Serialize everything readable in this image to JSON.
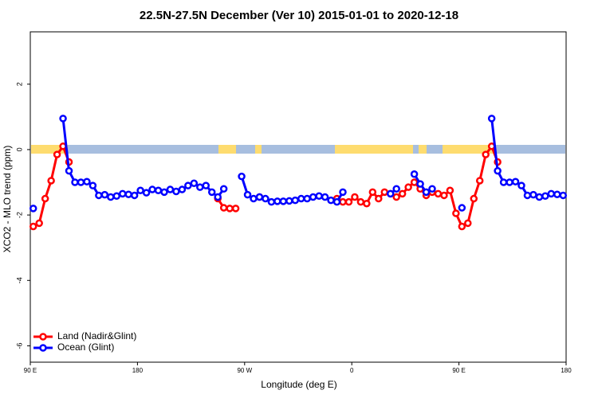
{
  "chart_data": {
    "type": "line",
    "title": "22.5N-27.5N December (Ver 10)   2015-01-01 to 2020-12-18",
    "xlabel": "Longitude (deg E)",
    "ylabel": "XCO2 - MLO trend (ppm)",
    "x": [
      92.5,
      97.5,
      102.5,
      107.5,
      112.5,
      117.5,
      122.5,
      127.5,
      132.5,
      137.5,
      142.5,
      147.5,
      152.5,
      157.5,
      162.5,
      167.5,
      172.5,
      177.5,
      182.5,
      187.5,
      192.5,
      197.5,
      202.5,
      207.5,
      212.5,
      217.5,
      222.5,
      227.5,
      232.5,
      237.5,
      242.5,
      247.5,
      252.5,
      257.5,
      262.5,
      267.5,
      272.5,
      277.5,
      282.5,
      287.5,
      292.5,
      297.5,
      302.5,
      307.5,
      312.5,
      317.5,
      322.5,
      327.5,
      332.5,
      337.5,
      342.5,
      347.5,
      352.5,
      357.5,
      362.5,
      367.5,
      372.5,
      377.5,
      382.5,
      387.5,
      392.5,
      397.5,
      402.5,
      407.5,
      412.5,
      417.5,
      422.5,
      427.5,
      432.5,
      437.5,
      442.5,
      447.5,
      452.5,
      457.5,
      462.5,
      467.5,
      472.5,
      477.5,
      482.5,
      487.5,
      492.5,
      497.5,
      502.5,
      507.5,
      512.5,
      517.5,
      522.5,
      527.5,
      532.5,
      537.5
    ],
    "series": [
      {
        "name": "Land (Nadir&Glint)",
        "color": "#ff0000",
        "values": [
          -2.35,
          -2.25,
          -1.5,
          -0.95,
          -0.15,
          0.1,
          -0.38,
          null,
          null,
          null,
          null,
          null,
          null,
          null,
          null,
          null,
          null,
          null,
          null,
          null,
          null,
          null,
          null,
          null,
          null,
          null,
          null,
          null,
          null,
          null,
          null,
          -1.5,
          -1.78,
          -1.8,
          -1.8,
          null,
          null,
          null,
          -1.45,
          null,
          null,
          null,
          null,
          null,
          null,
          null,
          null,
          null,
          null,
          null,
          null,
          -1.5,
          -1.6,
          -1.6,
          -1.45,
          -1.6,
          -1.65,
          -1.3,
          -1.5,
          -1.3,
          -1.35,
          -1.45,
          -1.35,
          -1.15,
          -1.0,
          -1.2,
          -1.4,
          -1.3,
          -1.35,
          -1.4,
          -1.25,
          -1.95,
          -2.35,
          -2.25,
          -1.5,
          -0.95,
          -0.15,
          0.1,
          -0.38,
          null,
          null,
          null,
          null,
          null,
          null,
          null,
          null,
          null,
          null,
          null
        ]
      },
      {
        "name": "Ocean (Glint)",
        "color": "#0000ff",
        "values": [
          -1.8,
          null,
          null,
          null,
          null,
          0.95,
          -0.65,
          -1.0,
          -1.0,
          -0.98,
          -1.1,
          -1.4,
          -1.38,
          -1.45,
          -1.42,
          -1.35,
          -1.37,
          -1.4,
          -1.25,
          -1.32,
          -1.22,
          -1.25,
          -1.3,
          -1.22,
          -1.28,
          -1.22,
          -1.1,
          -1.03,
          -1.15,
          -1.1,
          -1.3,
          -1.45,
          -1.2,
          null,
          null,
          -0.82,
          -1.38,
          -1.5,
          -1.45,
          -1.5,
          -1.6,
          -1.58,
          -1.58,
          -1.57,
          -1.55,
          -1.5,
          -1.5,
          -1.45,
          -1.42,
          -1.45,
          -1.55,
          -1.6,
          -1.3,
          null,
          null,
          null,
          null,
          null,
          null,
          null,
          -1.35,
          -1.2,
          null,
          null,
          -0.75,
          -1.05,
          -1.3,
          -1.2,
          null,
          null,
          null,
          null,
          -1.78,
          null,
          null,
          null,
          null,
          0.95,
          -0.65,
          -1.0,
          -1.0,
          -0.98,
          -1.1,
          -1.4,
          -1.38,
          -1.45,
          -1.42,
          -1.35,
          -1.37,
          -1.4
        ]
      }
    ],
    "xlim": [
      90,
      540
    ],
    "xticks": [
      {
        "value": 90,
        "label": "90 E"
      },
      180,
      {
        "value": 270,
        "label": "90 W"
      },
      {
        "value": 360,
        "label": "0"
      },
      {
        "value": 450,
        "label": "90 E"
      },
      {
        "value": 540,
        "label": "180"
      }
    ],
    "ylim": [
      -6.5,
      3.6
    ],
    "yticks": [
      -6,
      -4,
      -2,
      0,
      2
    ],
    "legend": "lower left"
  }
}
